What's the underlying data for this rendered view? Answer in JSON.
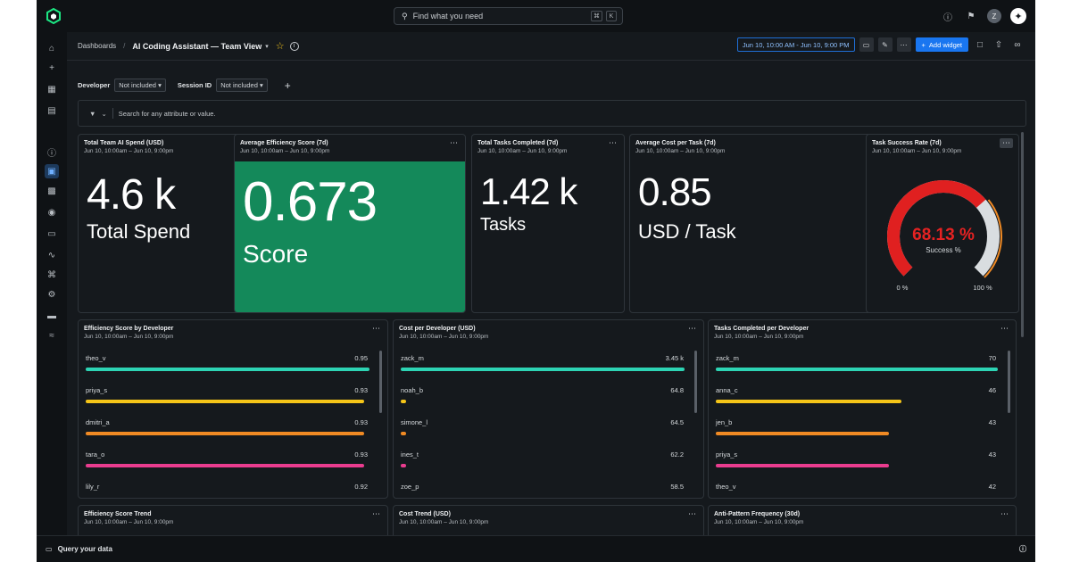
{
  "search": {
    "placeholder": "Find what you need",
    "kbd1": "⌘",
    "kbd2": "K"
  },
  "top": {
    "help_icon": "help-icon",
    "avatar": "Z"
  },
  "breadcrumb": {
    "root": "Dashboards",
    "title": "AI Coding Assistant — Team View"
  },
  "header": {
    "time_range": "Jun 10, 10:00 AM - Jun 10, 9:00 PM",
    "add_widget": "Add widget"
  },
  "filters": {
    "developer_label": "Developer",
    "developer_value": "Not included",
    "session_label": "Session ID",
    "session_value": "Not included"
  },
  "attr_search": {
    "placeholder": "Search for any attribute or value."
  },
  "widgets": {
    "spend": {
      "title": "Total Team AI Spend (USD)",
      "sub": "Jun 10, 10:00am – Jun 10, 9:00pm",
      "value": "4.6 k",
      "unit": "Total Spend"
    },
    "efficiency": {
      "title": "Average Efficiency Score (7d)",
      "sub": "Jun 10, 10:00am – Jun 10, 9:00pm",
      "value": "0.673",
      "unit": "Score"
    },
    "tasks": {
      "title": "Total Tasks Completed (7d)",
      "sub": "Jun 10, 10:00am – Jun 10, 9:00pm",
      "value": "1.42 k",
      "unit": "Tasks"
    },
    "cost_per_task": {
      "title": "Average Cost per Task (7d)",
      "sub": "Jun 10, 10:00am – Jun 10, 9:00pm",
      "value": "0.85",
      "unit": "USD / Task"
    },
    "success": {
      "title": "Task Success Rate (7d)",
      "sub": "Jun 10, 10:00am – Jun 10, 9:00pm",
      "value": "68.13 %",
      "label": "Success %",
      "min": "0 %",
      "max": "100 %",
      "fraction": 0.6813
    },
    "eff_by_dev": {
      "title": "Efficiency Score by Developer",
      "sub": "Jun 10, 10:00am – Jun 10, 9:00pm",
      "rows": [
        {
          "name": "theo_v",
          "value": "0.95",
          "frac": 1.0,
          "color": "#2dd4b4"
        },
        {
          "name": "priya_s",
          "value": "0.93",
          "frac": 0.98,
          "color": "#f5c518"
        },
        {
          "name": "dmitri_a",
          "value": "0.93",
          "frac": 0.98,
          "color": "#f08a24"
        },
        {
          "name": "tara_o",
          "value": "0.93",
          "frac": 0.98,
          "color": "#ea3c8f"
        },
        {
          "name": "lily_r",
          "value": "0.92",
          "frac": 0.97,
          "color": "#2dd4b4"
        }
      ]
    },
    "cost_by_dev": {
      "title": "Cost per Developer (USD)",
      "sub": "Jun 10, 10:00am – Jun 10, 9:00pm",
      "rows": [
        {
          "name": "zack_m",
          "value": "3.45 k",
          "frac": 1.0,
          "color": "#2dd4b4"
        },
        {
          "name": "noah_b",
          "value": "64.8",
          "frac": 0.019,
          "color": "#f5c518"
        },
        {
          "name": "simone_l",
          "value": "64.5",
          "frac": 0.019,
          "color": "#f08a24"
        },
        {
          "name": "ines_t",
          "value": "62.2",
          "frac": 0.018,
          "color": "#ea3c8f"
        },
        {
          "name": "zoe_p",
          "value": "58.5",
          "frac": 0.017,
          "color": "#2dd4b4"
        }
      ]
    },
    "tasks_by_dev": {
      "title": "Tasks Completed per Developer",
      "sub": "Jun 10, 10:00am – Jun 10, 9:00pm",
      "rows": [
        {
          "name": "zack_m",
          "value": "70",
          "frac": 1.0,
          "color": "#2dd4b4"
        },
        {
          "name": "anna_c",
          "value": "46",
          "frac": 0.657,
          "color": "#f5c518"
        },
        {
          "name": "jen_b",
          "value": "43",
          "frac": 0.614,
          "color": "#f08a24"
        },
        {
          "name": "priya_s",
          "value": "43",
          "frac": 0.614,
          "color": "#ea3c8f"
        },
        {
          "name": "theo_v",
          "value": "42",
          "frac": 0.6,
          "color": "#2dd4b4"
        }
      ]
    },
    "eff_trend": {
      "title": "Efficiency Score Trend",
      "sub": "Jun 10, 10:00am – Jun 10, 9:00pm"
    },
    "cost_trend": {
      "title": "Cost Trend (USD)",
      "sub": "Jun 10, 10:00am – Jun 10, 9:00pm"
    },
    "anti_pattern": {
      "title": "Anti-Pattern Frequency (30d)",
      "sub": "Jun 10, 10:00am – Jun 10, 9:00pm"
    }
  },
  "bottom": {
    "query": "Query your data"
  },
  "colors": {
    "accent": "#1976f0",
    "green": "#14895a",
    "gauge_red": "#e02020",
    "gauge_rest": "#d9dde0"
  }
}
